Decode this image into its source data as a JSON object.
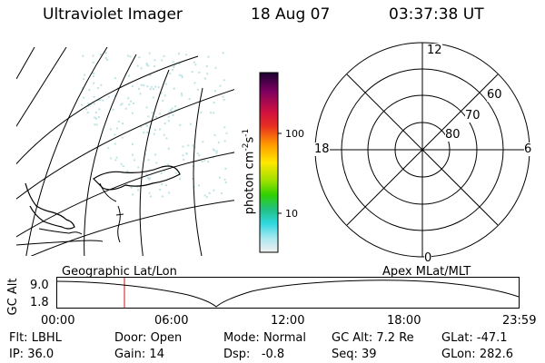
{
  "header": {
    "title": "Ultraviolet Imager",
    "date": "18 Aug 07",
    "time": "03:37:38 UT"
  },
  "colorbar": {
    "unit_label": "photon cm",
    "unit_sup1": "-2",
    "unit_mid": "s",
    "unit_sup2": "-1",
    "ticks": [
      "100",
      "10"
    ]
  },
  "polar_plot": {
    "mlt_labels": {
      "top": "12",
      "left": "18",
      "right": "6",
      "bottom": "0"
    },
    "lat_labels": [
      "60",
      "70",
      "80"
    ]
  },
  "geo_plot": {
    "label": "Geographic Lat/Lon"
  },
  "apex_label": "Apex MLat/MLT",
  "altitude_strip": {
    "axis_label": "GC Alt",
    "y_ticks": [
      "9.0",
      "1.8"
    ],
    "x_ticks": [
      "00:00",
      "06:00",
      "12:00",
      "18:00",
      "23:59"
    ]
  },
  "info": {
    "row1": {
      "flt_label": "Flt:",
      "flt_value": "LBHL",
      "door_label": "Door:",
      "door_value": "Open",
      "mode_label": "Mode:",
      "mode_value": "Normal",
      "gcalt_label": "GC Alt:",
      "gcalt_value": "7.2 Re",
      "glat_label": "GLat:",
      "glat_value": "-47.1"
    },
    "row2": {
      "ip_label": "IP:",
      "ip_value": "36.0",
      "gain_label": "Gain:",
      "gain_value": "14",
      "dsp_label": "Dsp:",
      "dsp_value": "-0.8",
      "seq_label": "Seq:",
      "seq_value": "39",
      "glon_label": "GLon:",
      "glon_value": "282.6"
    }
  },
  "colors": {
    "time_marker": "#d01010",
    "noise": "#bfe3e3"
  }
}
